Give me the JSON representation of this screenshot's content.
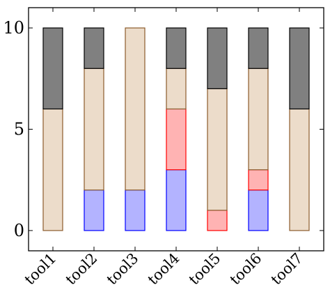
{
  "chart_data": {
    "type": "bar",
    "stacked": true,
    "categories": [
      "tool1",
      "tool2",
      "tool3",
      "tool4",
      "tool5",
      "tool6",
      "tool7"
    ],
    "series": [
      {
        "color": "#b3b3ff",
        "stroke": "#0000ff",
        "values": [
          0,
          2,
          2,
          3,
          0,
          2,
          0
        ]
      },
      {
        "color": "#ffb3b3",
        "stroke": "#ff0000",
        "values": [
          0,
          0,
          0,
          3,
          1,
          1,
          0
        ]
      },
      {
        "color": "#ecdcca",
        "stroke": "#8b5a2b",
        "values": [
          6,
          6,
          8,
          2,
          6,
          5,
          6
        ]
      },
      {
        "color": "#808080",
        "stroke": "#000000",
        "values": [
          4,
          2,
          0,
          2,
          3,
          2,
          4
        ]
      }
    ],
    "ylim": [
      -1,
      11
    ],
    "yticks": [
      0,
      5,
      10
    ],
    "grid": false,
    "title": "",
    "xlabel": "",
    "ylabel": ""
  }
}
